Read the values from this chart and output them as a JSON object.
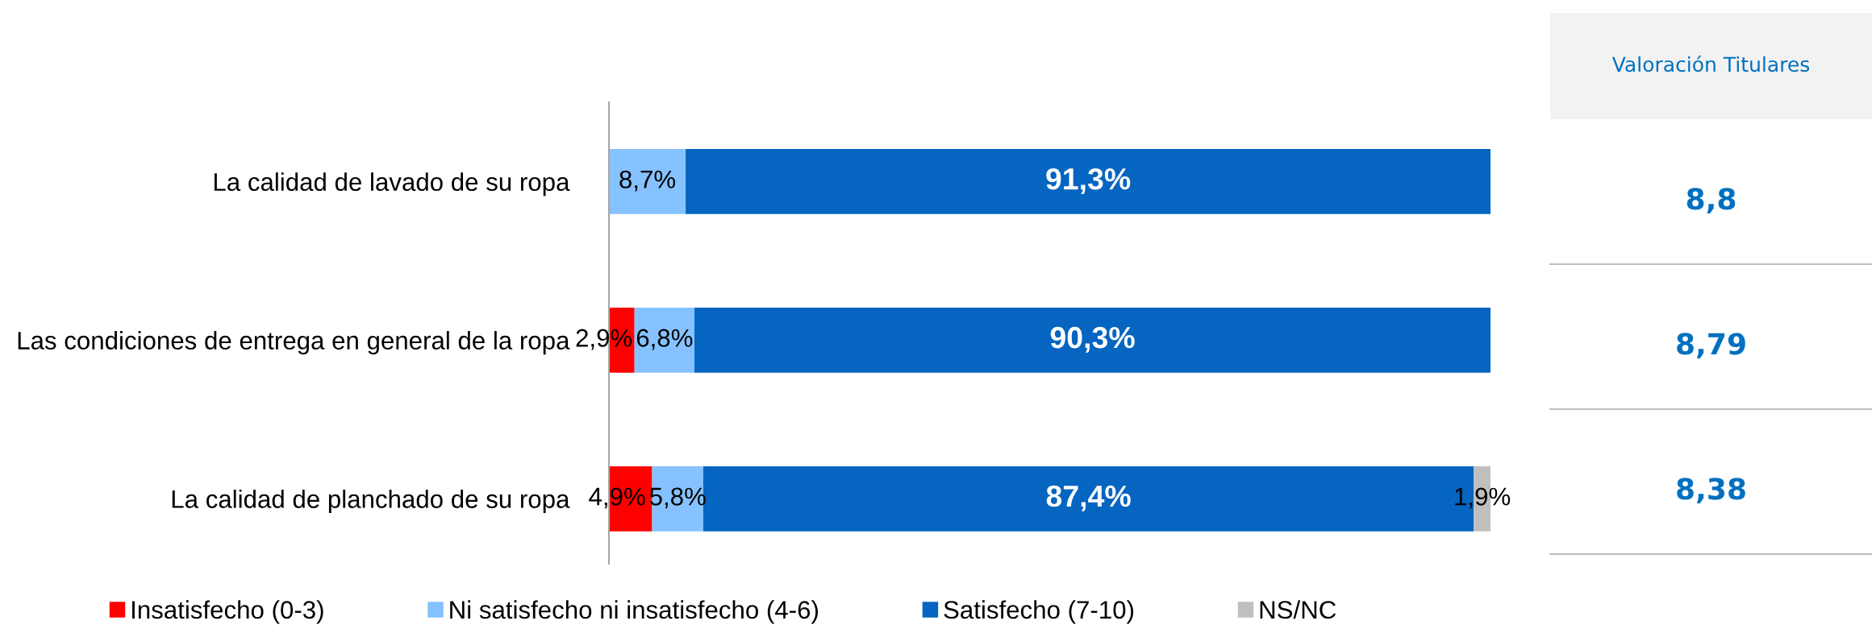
{
  "chart_data": [
    {
      "type": "bar",
      "orientation": "horizontal",
      "stacked": true,
      "tick_labels": "y",
      "legend": "bottom",
      "categories": [
        "La calidad de lavado de su ropa",
        "Las condiciones de entrega en general de la ropa",
        "La calidad de planchado de su ropa"
      ],
      "series": [
        {
          "name": "Insatisfecho (0-3)",
          "color": "#ff0000",
          "values": [
            null,
            2.9,
            4.9
          ],
          "value_labels": [
            null,
            "2,9%",
            "4,9%"
          ]
        },
        {
          "name": "Ni satisfecho ni insatisfecho (4-6)",
          "color": "#85c2ff",
          "values": [
            8.7,
            6.8,
            5.8
          ],
          "value_labels": [
            "8,7%",
            "6,8%",
            "5,8%"
          ]
        },
        {
          "name": "Satisfecho (7-10)",
          "color": "#0565c0",
          "values": [
            91.3,
            90.3,
            87.4
          ],
          "value_labels": [
            "91,3%",
            "90,3%",
            "87,4%"
          ]
        },
        {
          "name": "NS/NC",
          "color": "#bfbfbf",
          "values": [
            null,
            null,
            1.9
          ],
          "value_labels": [
            null,
            null,
            "1,9%"
          ]
        }
      ]
    },
    {
      "type": "other",
      "title": "Valoración Titulares",
      "annotations": [
        "8,8",
        "8,79",
        "8,38"
      ]
    }
  ]
}
